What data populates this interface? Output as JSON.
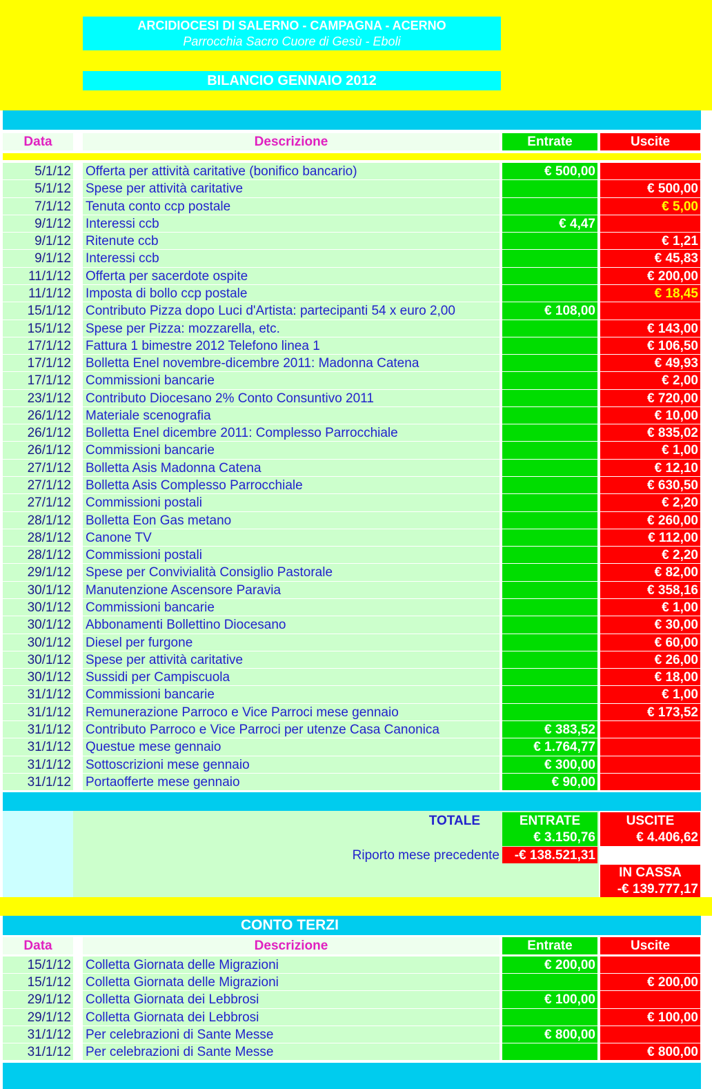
{
  "header": {
    "diocese": "ARCIDIOCESI DI SALERNO - CAMPAGNA - ACERNO",
    "parish": "Parrocchia Sacro Cuore di Gesù - Eboli",
    "title": "BILANCIO GENNAIO 2012"
  },
  "table": {
    "columns": [
      "Data",
      "Descrizione",
      "Entrate",
      "Uscite"
    ],
    "rows": [
      {
        "date": "5/1/12",
        "description": "Offerta per attività caritative (bonifico bancario)",
        "in": "€ 500,00",
        "out": null
      },
      {
        "date": "5/1/12",
        "description": "Spese per attività caritative",
        "in": null,
        "out": "€ 500,00"
      },
      {
        "date": "7/1/12",
        "description": "Tenuta conto ccp postale",
        "in": null,
        "out": "€ 5,00",
        "out_color": "#ffff00"
      },
      {
        "date": "9/1/12",
        "description": "Interessi ccb",
        "in": "€ 4,47",
        "out": null
      },
      {
        "date": "9/1/12",
        "description": "Ritenute ccb",
        "in": null,
        "out": "€ 1,21"
      },
      {
        "date": "9/1/12",
        "description": "Interessi ccb",
        "in": null,
        "out": "€ 45,83"
      },
      {
        "date": "11/1/12",
        "description": "Offerta per sacerdote ospite",
        "in": null,
        "out": "€ 200,00"
      },
      {
        "date": "11/1/12",
        "description": "Imposta di bollo ccp postale",
        "in": null,
        "out": "€ 18,45",
        "out_color": "#ffff00"
      },
      {
        "date": "15/1/12",
        "description": "Contributo Pizza dopo Luci d'Artista: partecipanti 54 x euro 2,00",
        "in": "€ 108,00",
        "out": null
      },
      {
        "date": "15/1/12",
        "description": "Spese per Pizza: mozzarella, etc.",
        "in": null,
        "out": "€ 143,00"
      },
      {
        "date": "17/1/12",
        "description": "Fattura 1 bimestre 2012 Telefono linea 1",
        "in": null,
        "out": "€ 106,50"
      },
      {
        "date": "17/1/12",
        "description": "Bolletta Enel novembre-dicembre 2011: Madonna Catena",
        "in": null,
        "out": "€ 49,93"
      },
      {
        "date": "17/1/12",
        "description": "Commissioni bancarie",
        "in": null,
        "out": "€ 2,00"
      },
      {
        "date": "23/1/12",
        "description": "Contributo Diocesano 2% Conto Consuntivo 2011",
        "in": null,
        "out": "€ 720,00"
      },
      {
        "date": "26/1/12",
        "description": "Materiale scenografia",
        "in": null,
        "out": "€ 10,00"
      },
      {
        "date": "26/1/12",
        "description": "Bolletta Enel dicembre 2011: Complesso Parrocchiale",
        "in": null,
        "out": "€ 835,02"
      },
      {
        "date": "26/1/12",
        "description": "Commissioni bancarie",
        "in": null,
        "out": "€ 1,00"
      },
      {
        "date": "27/1/12",
        "description": "Bolletta Asis Madonna Catena",
        "in": null,
        "out": "€ 12,10"
      },
      {
        "date": "27/1/12",
        "description": "Bolletta Asis Complesso Parrocchiale",
        "in": null,
        "out": "€ 630,50"
      },
      {
        "date": "27/1/12",
        "description": "Commissioni postali",
        "in": null,
        "out": "€ 2,20"
      },
      {
        "date": "28/1/12",
        "description": "Bolletta Eon Gas metano",
        "in": null,
        "out": "€ 260,00"
      },
      {
        "date": "28/1/12",
        "description": "Canone TV",
        "in": null,
        "out": "€ 112,00"
      },
      {
        "date": "28/1/12",
        "description": "Commissioni postali",
        "in": null,
        "out": "€ 2,20"
      },
      {
        "date": "29/1/12",
        "description": "Spese per Convivialità Consiglio Pastorale",
        "in": null,
        "out": "€ 82,00"
      },
      {
        "date": "30/1/12",
        "description": "Manutenzione Ascensore Paravia",
        "in": null,
        "out": "€ 358,16"
      },
      {
        "date": "30/1/12",
        "description": "Commissioni bancarie",
        "in": null,
        "out": "€ 1,00"
      },
      {
        "date": "30/1/12",
        "description": "Abbonamenti Bollettino Diocesano",
        "in": null,
        "out": "€ 30,00"
      },
      {
        "date": "30/1/12",
        "description": "Diesel per furgone",
        "in": null,
        "out": "€ 60,00"
      },
      {
        "date": "30/1/12",
        "description": "Spese per attività caritative",
        "in": null,
        "out": "€ 26,00"
      },
      {
        "date": "30/1/12",
        "description": "Sussidi per Campiscuola",
        "in": null,
        "out": "€ 18,00"
      },
      {
        "date": "31/1/12",
        "description": "Commissioni bancarie",
        "in": null,
        "out": "€ 1,00"
      },
      {
        "date": "31/1/12",
        "description": "Remunerazione Parroco e Vice Parroci mese gennaio",
        "in": null,
        "out": "€ 173,52"
      },
      {
        "date": "31/1/12",
        "description": "Contributo Parroco e Vice Parroci per utenze Casa Canonica",
        "in": "€ 383,52",
        "out": null
      },
      {
        "date": "31/1/12",
        "description": "Questue mese gennaio",
        "in": "€ 1.764,77",
        "out": null
      },
      {
        "date": "31/1/12",
        "description": "Sottoscrizioni mese gennaio",
        "in": "€ 300,00",
        "out": null
      },
      {
        "date": "31/1/12",
        "description": "Portaofferte mese gennaio",
        "in": "€ 90,00",
        "out": null
      }
    ]
  },
  "totals": {
    "label": "TOTALE",
    "in_label": "ENTRATE",
    "out_label": "USCITE",
    "in": "€ 3.150,76",
    "out": "€ 4.406,62",
    "carry_label": "Riporto mese precedente",
    "carry": "-€ 138.521,31",
    "cash_label": "IN CASSA",
    "cash": "-€ 139.777,17"
  },
  "third_party": {
    "title": "CONTO TERZI",
    "columns": [
      "Data",
      "Descrizione",
      "Entrate",
      "Uscite"
    ],
    "rows": [
      {
        "date": "15/1/12",
        "description": "Colletta Giornata delle Migrazioni",
        "in": "€ 200,00",
        "out": null
      },
      {
        "date": "15/1/12",
        "description": "Colletta Giornata delle Migrazioni",
        "in": null,
        "out": "€ 200,00"
      },
      {
        "date": "29/1/12",
        "description": "Colletta Giornata dei Lebbrosi",
        "in": "€ 100,00",
        "out": null
      },
      {
        "date": "29/1/12",
        "description": "Colletta Giornata dei Lebbrosi",
        "in": null,
        "out": "€ 100,00"
      },
      {
        "date": "31/1/12",
        "description": "Per celebrazioni di Sante Messe",
        "in": "€ 800,00",
        "out": null
      },
      {
        "date": "31/1/12",
        "description": "Per celebrazioni di Sante Messe",
        "in": null,
        "out": "€ 800,00"
      }
    ]
  }
}
